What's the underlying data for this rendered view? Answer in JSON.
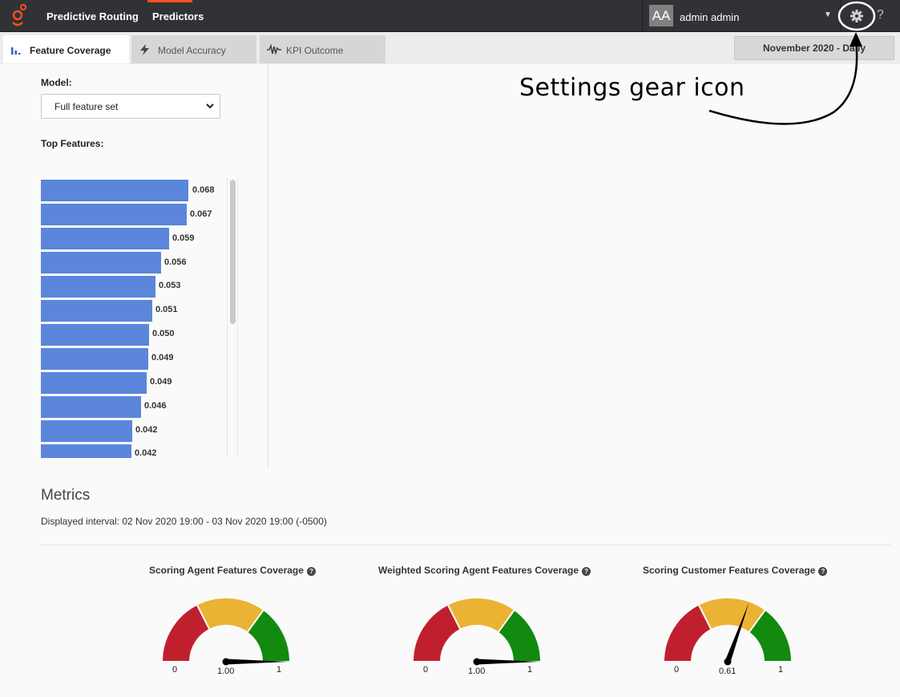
{
  "header": {
    "app_title": "Predictive Routing",
    "nav_predictors": "Predictors",
    "user_initials": "AA",
    "user_name": "admin admin",
    "help": "?"
  },
  "tabs": [
    {
      "label": "Feature Coverage",
      "icon": "bar-chart-icon",
      "active": true
    },
    {
      "label": "Model Accuracy",
      "icon": "lightning-icon",
      "active": false
    },
    {
      "label": "KPI Outcome",
      "icon": "waveform-icon",
      "active": false
    }
  ],
  "date_selector": "November 2020 - Daily",
  "model": {
    "label": "Model:",
    "selected": "Full feature set"
  },
  "top_features": {
    "label": "Top Features:",
    "values": [
      "0.068",
      "0.067",
      "0.059",
      "0.056",
      "0.053",
      "0.051",
      "0.050",
      "0.049",
      "0.049",
      "0.046",
      "0.042",
      "0.042"
    ]
  },
  "annotation": "Settings gear icon",
  "metrics": {
    "title": "Metrics",
    "interval": "Displayed interval: 02 Nov 2020 19:00 - 03 Nov 2020 19:00 (-0500)",
    "gauges": [
      {
        "title": "Scoring Agent Features Coverage",
        "min": "0",
        "max": "1",
        "value_label": "1.00",
        "value": 1.0
      },
      {
        "title": "Weighted Scoring Agent Features Coverage",
        "min": "0",
        "max": "1",
        "value_label": "1.00",
        "value": 1.0
      },
      {
        "title": "Scoring Customer Features Coverage",
        "min": "0",
        "max": "1",
        "value_label": "0.61",
        "value": 0.61
      }
    ]
  },
  "colors": {
    "gauge_red": "#c0202e",
    "gauge_yellow": "#eab333",
    "gauge_green": "#118a0f",
    "bar_blue": "#5b86d9",
    "brand_orange": "#ff4f1f"
  }
}
